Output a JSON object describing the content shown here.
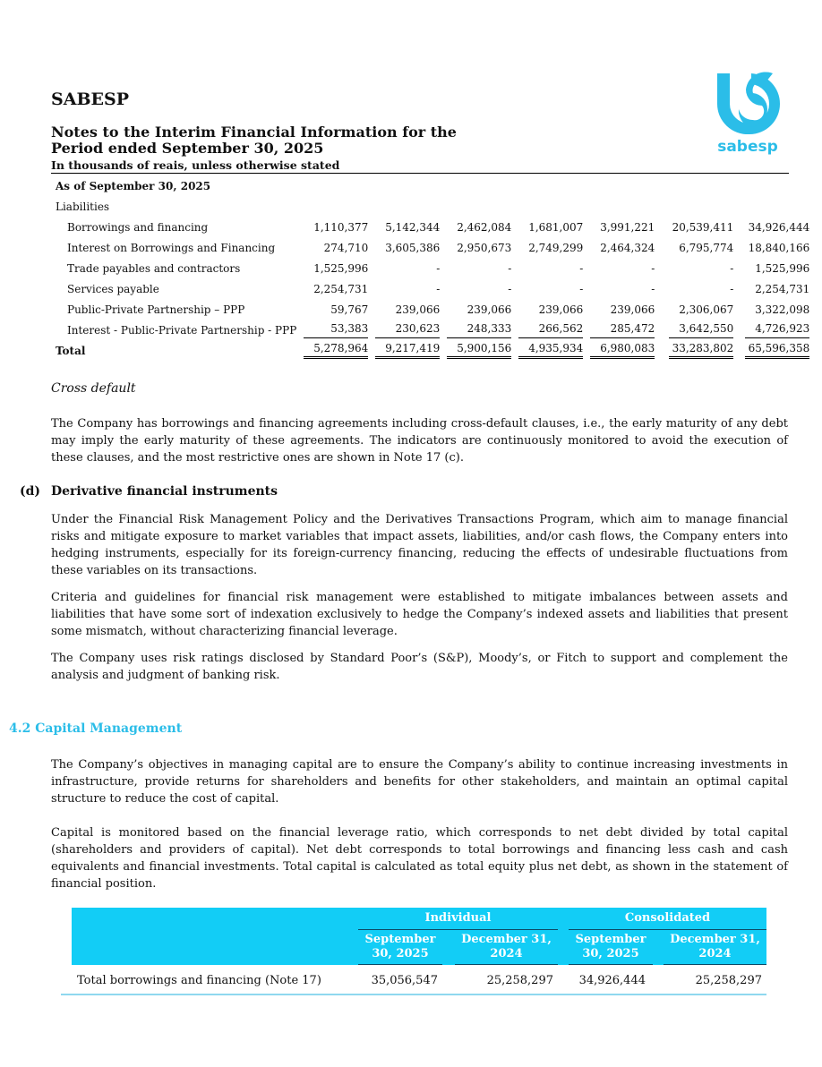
{
  "header": {
    "company": "SABESP",
    "title_line1": "Notes to the Interim Financial Information for the",
    "title_line2": "Period ended September 30, 2025",
    "subtitle": "In thousands of reais, unless otherwise stated",
    "logo_text": "sabesp",
    "brand_color": "#2bbde8"
  },
  "liabilities_table": {
    "as_of": "As of September 30, 2025",
    "section": "Liabilities",
    "rows": [
      {
        "label": "Borrowings and financing",
        "values": [
          "1,110,377",
          "5,142,344",
          "2,462,084",
          "1,681,007",
          "3,991,221",
          "20,539,411",
          "34,926,444"
        ]
      },
      {
        "label": "Interest on Borrowings and Financing",
        "values": [
          "274,710",
          "3,605,386",
          "2,950,673",
          "2,749,299",
          "2,464,324",
          "6,795,774",
          "18,840,166"
        ]
      },
      {
        "label": "Trade payables and contractors",
        "values": [
          "1,525,996",
          "-",
          "-",
          "-",
          "-",
          "-",
          "1,525,996"
        ]
      },
      {
        "label": "Services payable",
        "values": [
          "2,254,731",
          "-",
          "-",
          "-",
          "-",
          "-",
          "2,254,731"
        ]
      },
      {
        "label": "Public-Private Partnership – PPP",
        "values": [
          "59,767",
          "239,066",
          "239,066",
          "239,066",
          "239,066",
          "2,306,067",
          "3,322,098"
        ]
      },
      {
        "label": "Interest - Public-Private Partnership - PPP",
        "values": [
          "53,383",
          "230,623",
          "248,333",
          "266,562",
          "285,472",
          "3,642,550",
          "4,726,923"
        ]
      }
    ],
    "total": {
      "label": "Total",
      "values": [
        "5,278,964",
        "9,217,419",
        "5,900,156",
        "4,935,934",
        "6,980,083",
        "33,283,802",
        "65,596,358"
      ]
    }
  },
  "cross_default": {
    "heading": "Cross default",
    "text": "The Company has borrowings and financing agreements including cross-default clauses, i.e., the early maturity of any debt may imply the early maturity of these agreements. The indicators are continuously monitored to avoid the execution of these clauses, and the most restrictive ones are shown in Note 17 (c)."
  },
  "derivatives": {
    "marker": "(d)",
    "heading": "Derivative financial instruments",
    "paragraphs": [
      "Under the Financial Risk Management Policy and the Derivatives Transactions Program, which aim to manage financial risks and mitigate exposure to market variables that impact assets, liabilities, and/or cash flows, the Company enters into hedging instruments, especially for its foreign-currency financing, reducing the effects of undesirable fluctuations from these variables on its transactions.",
      "Criteria and guidelines for financial risk management were established to mitigate imbalances between assets and liabilities that have some sort of indexation exclusively to hedge the Company’s indexed assets and liabilities that present some mismatch, without characterizing financial leverage.",
      "The Company uses risk ratings disclosed by Standard Poor’s (S&P), Moody’s, or Fitch to support and complement the analysis and judgment of banking risk."
    ]
  },
  "capital": {
    "heading": "4.2 Capital Management",
    "paragraphs": [
      "The Company’s objectives in managing capital are to ensure the Company’s ability to continue increasing investments in infrastructure, provide returns for shareholders and benefits for other stakeholders, and maintain an optimal capital structure to reduce the cost of capital.",
      "Capital is monitored based on the financial leverage ratio, which corresponds to net debt divided by total capital (shareholders and providers of capital). Net debt corresponds to total borrowings and financing less cash and cash equivalents and financial investments. Total capital is calculated as total equity plus net debt, as shown in the statement of financial position."
    ],
    "table": {
      "group1": "Individual",
      "group2": "Consolidated",
      "col1": "September 30, 2025",
      "col2": "December 31, 2024",
      "col3": "September 30, 2025",
      "col4": "December 31, 2024",
      "header_color": "#12cdf6",
      "row_label": "Total borrowings and financing (Note 17)",
      "row_values": [
        "35,056,547",
        "25,258,297",
        "34,926,444",
        "25,258,297"
      ]
    }
  }
}
